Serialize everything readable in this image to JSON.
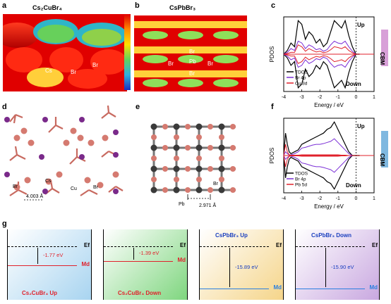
{
  "panels": {
    "a": {
      "letter": "a",
      "title": "Cs₂CuBr₄",
      "labels": [
        "Cs",
        "Br",
        "Br"
      ]
    },
    "b": {
      "letter": "b",
      "title": "CsPbBr₃",
      "labels": [
        "Br",
        "Br",
        "Pb",
        "Br",
        "Br"
      ]
    },
    "c": {
      "letter": "c"
    },
    "d": {
      "letter": "d",
      "labels": {
        "cs": "Cs",
        "br1": "Br",
        "cu": "Cu",
        "br2": "Br",
        "dist": "4.003 Å"
      }
    },
    "e": {
      "letter": "e",
      "labels": {
        "br": "Br",
        "pb": "Pb",
        "dist": "2.971 Å"
      }
    },
    "f": {
      "letter": "f"
    },
    "g": {
      "letter": "g"
    }
  },
  "chart_data": [
    {
      "type": "line",
      "panel": "c",
      "xlabel": "Energy / eV",
      "ylabel": "PDOS",
      "xlim": [
        -4,
        1
      ],
      "xticks": [
        "-4",
        "-3",
        "-2",
        "-1",
        "0",
        "1"
      ],
      "annotations": {
        "up": "Up",
        "down": "Down",
        "cbm": "CBM"
      },
      "legend": [
        {
          "name": "TDOS",
          "color": "#000000"
        },
        {
          "name": "Br 4p",
          "color": "#7b2fd6"
        },
        {
          "name": "Cu 3d",
          "color": "#e0212b"
        }
      ],
      "series": [
        {
          "name": "TDOS",
          "x": [
            -4.0,
            -3.8,
            -3.6,
            -3.4,
            -3.2,
            -3.0,
            -2.8,
            -2.6,
            -2.4,
            -2.2,
            -2.0,
            -1.8,
            -1.6,
            -1.4,
            -1.2,
            -1.0,
            -0.8,
            -0.6,
            -0.4,
            -0.2,
            0.0,
            0.2
          ],
          "y": [
            0,
            0.1,
            0.3,
            0.2,
            0.9,
            0.8,
            0.4,
            0.6,
            0.5,
            0.3,
            0.4,
            0.2,
            0.3,
            0.6,
            0.9,
            0.8,
            0.7,
            0.9,
            0.5,
            0.2,
            0,
            0
          ]
        },
        {
          "name": "Br 4p",
          "x": [
            -4.0,
            -3.8,
            -3.6,
            -3.4,
            -3.2,
            -3.0,
            -2.8,
            -2.6,
            -2.4,
            -2.2,
            -2.0,
            -1.8,
            -1.6,
            -1.4,
            -1.2,
            -1.0,
            -0.8,
            -0.6,
            -0.4,
            -0.2,
            0.0,
            0.2
          ],
          "y": [
            0,
            0.05,
            0.15,
            0.1,
            0.35,
            0.3,
            0.15,
            0.25,
            0.2,
            0.12,
            0.15,
            0.08,
            0.12,
            0.25,
            0.35,
            0.3,
            0.28,
            0.35,
            0.2,
            0.08,
            0,
            0
          ]
        },
        {
          "name": "Cu 3d",
          "x": [
            -4.0,
            -3.8,
            -3.6,
            -3.4,
            -3.2,
            -3.0,
            -2.8,
            -2.6,
            -2.4,
            -2.2,
            -2.0,
            -1.8,
            -1.6,
            -1.4,
            -1.2,
            -1.0,
            -0.8,
            -0.6,
            -0.4,
            -0.2,
            0.0,
            0.2
          ],
          "y": [
            0,
            0.02,
            0.05,
            0.05,
            0.25,
            0.2,
            0.08,
            0.15,
            0.1,
            0.06,
            0.08,
            0.04,
            0.06,
            0.12,
            0.2,
            0.18,
            0.15,
            0.2,
            0.1,
            0.04,
            0,
            0
          ]
        }
      ]
    },
    {
      "type": "line",
      "panel": "f",
      "xlabel": "Energy / eV",
      "ylabel": "PDOS",
      "xlim": [
        -4,
        1
      ],
      "xticks": [
        "-4",
        "-3",
        "-2",
        "-1",
        "0",
        "1"
      ],
      "annotations": {
        "up": "Up",
        "down": "Down",
        "cbm": "CBM"
      },
      "legend": [
        {
          "name": "TDOS",
          "color": "#000000"
        },
        {
          "name": "Br 4p",
          "color": "#7b2fd6"
        },
        {
          "name": "Pb 5d",
          "color": "#e0212b"
        }
      ],
      "series": [
        {
          "name": "TDOS",
          "x": [
            -4.0,
            -3.9,
            -3.8,
            -3.7,
            -3.6,
            -3.4,
            -3.2,
            -3.0,
            -2.8,
            -2.6,
            -2.4,
            -2.2,
            -2.0,
            -1.8,
            -1.6,
            -1.4,
            -1.2,
            -1.0,
            -0.8,
            -0.6,
            -0.4,
            -0.2,
            0.0,
            0.2
          ],
          "y": [
            0,
            0.6,
            0.3,
            0.1,
            0.05,
            0.1,
            0.15,
            0.3,
            0.35,
            0.4,
            0.45,
            0.5,
            0.55,
            0.6,
            0.7,
            0.75,
            0.9,
            0.7,
            0.5,
            0.3,
            0.1,
            0,
            0,
            0
          ]
        },
        {
          "name": "Br 4p",
          "x": [
            -4.0,
            -3.9,
            -3.8,
            -3.7,
            -3.6,
            -3.4,
            -3.2,
            -3.0,
            -2.8,
            -2.6,
            -2.4,
            -2.2,
            -2.0,
            -1.8,
            -1.6,
            -1.4,
            -1.2,
            -1.0,
            -0.8,
            -0.6,
            -0.4,
            -0.2,
            0.0,
            0.2
          ],
          "y": [
            0,
            0.1,
            0.05,
            0.02,
            0.02,
            0.05,
            0.1,
            0.2,
            0.22,
            0.25,
            0.28,
            0.3,
            0.3,
            0.32,
            0.35,
            0.38,
            0.45,
            0.35,
            0.25,
            0.15,
            0.05,
            0,
            0,
            0
          ]
        },
        {
          "name": "Pb 5d",
          "x": [
            -4.0,
            -3.9,
            -3.8,
            -3.7,
            -3.6,
            -3.4,
            -3.2,
            -3.0,
            -2.8,
            -2.6,
            -2.4,
            -2.2,
            -2.0,
            -1.8,
            -1.6,
            -1.4,
            -1.2,
            -1.0,
            -0.8,
            -0.6,
            -0.4,
            -0.2,
            0.0,
            0.2
          ],
          "y": [
            0,
            0.3,
            0.1,
            0.02,
            0.01,
            0.01,
            0.01,
            0.02,
            0.02,
            0.02,
            0.02,
            0.02,
            0.02,
            0.02,
            0.02,
            0.02,
            0.02,
            0.02,
            0.01,
            0.01,
            0,
            0,
            0,
            0
          ]
        }
      ]
    },
    {
      "type": "diagram",
      "panel": "g",
      "boxes": [
        {
          "title": "Cs₂CuBr₄ Up",
          "ef": "Ef",
          "md": "Md",
          "gap": "-1.77 eV",
          "gap_value": -1.77,
          "fill": "#a8d4f0",
          "line": "#e0212b"
        },
        {
          "title": "Cs₂CuBr₄ Down",
          "ef": "Ef",
          "md": "Md",
          "gap": "-1.39 eV",
          "gap_value": -1.39,
          "fill": "#7fd67f",
          "line": "#e0212b"
        },
        {
          "title": "CsPbBr₃ Up",
          "ef": "Ef",
          "md": "Md",
          "gap": "-15.89 eV",
          "gap_value": -15.89,
          "fill": "#f5d58a",
          "line": "#2a7fe0"
        },
        {
          "title": "CsPbBr₃ Down",
          "ef": "Ef",
          "md": "Md",
          "gap": "-15.90 eV",
          "gap_value": -15.9,
          "fill": "#c9a8e0",
          "line": "#2a7fe0"
        }
      ]
    }
  ]
}
